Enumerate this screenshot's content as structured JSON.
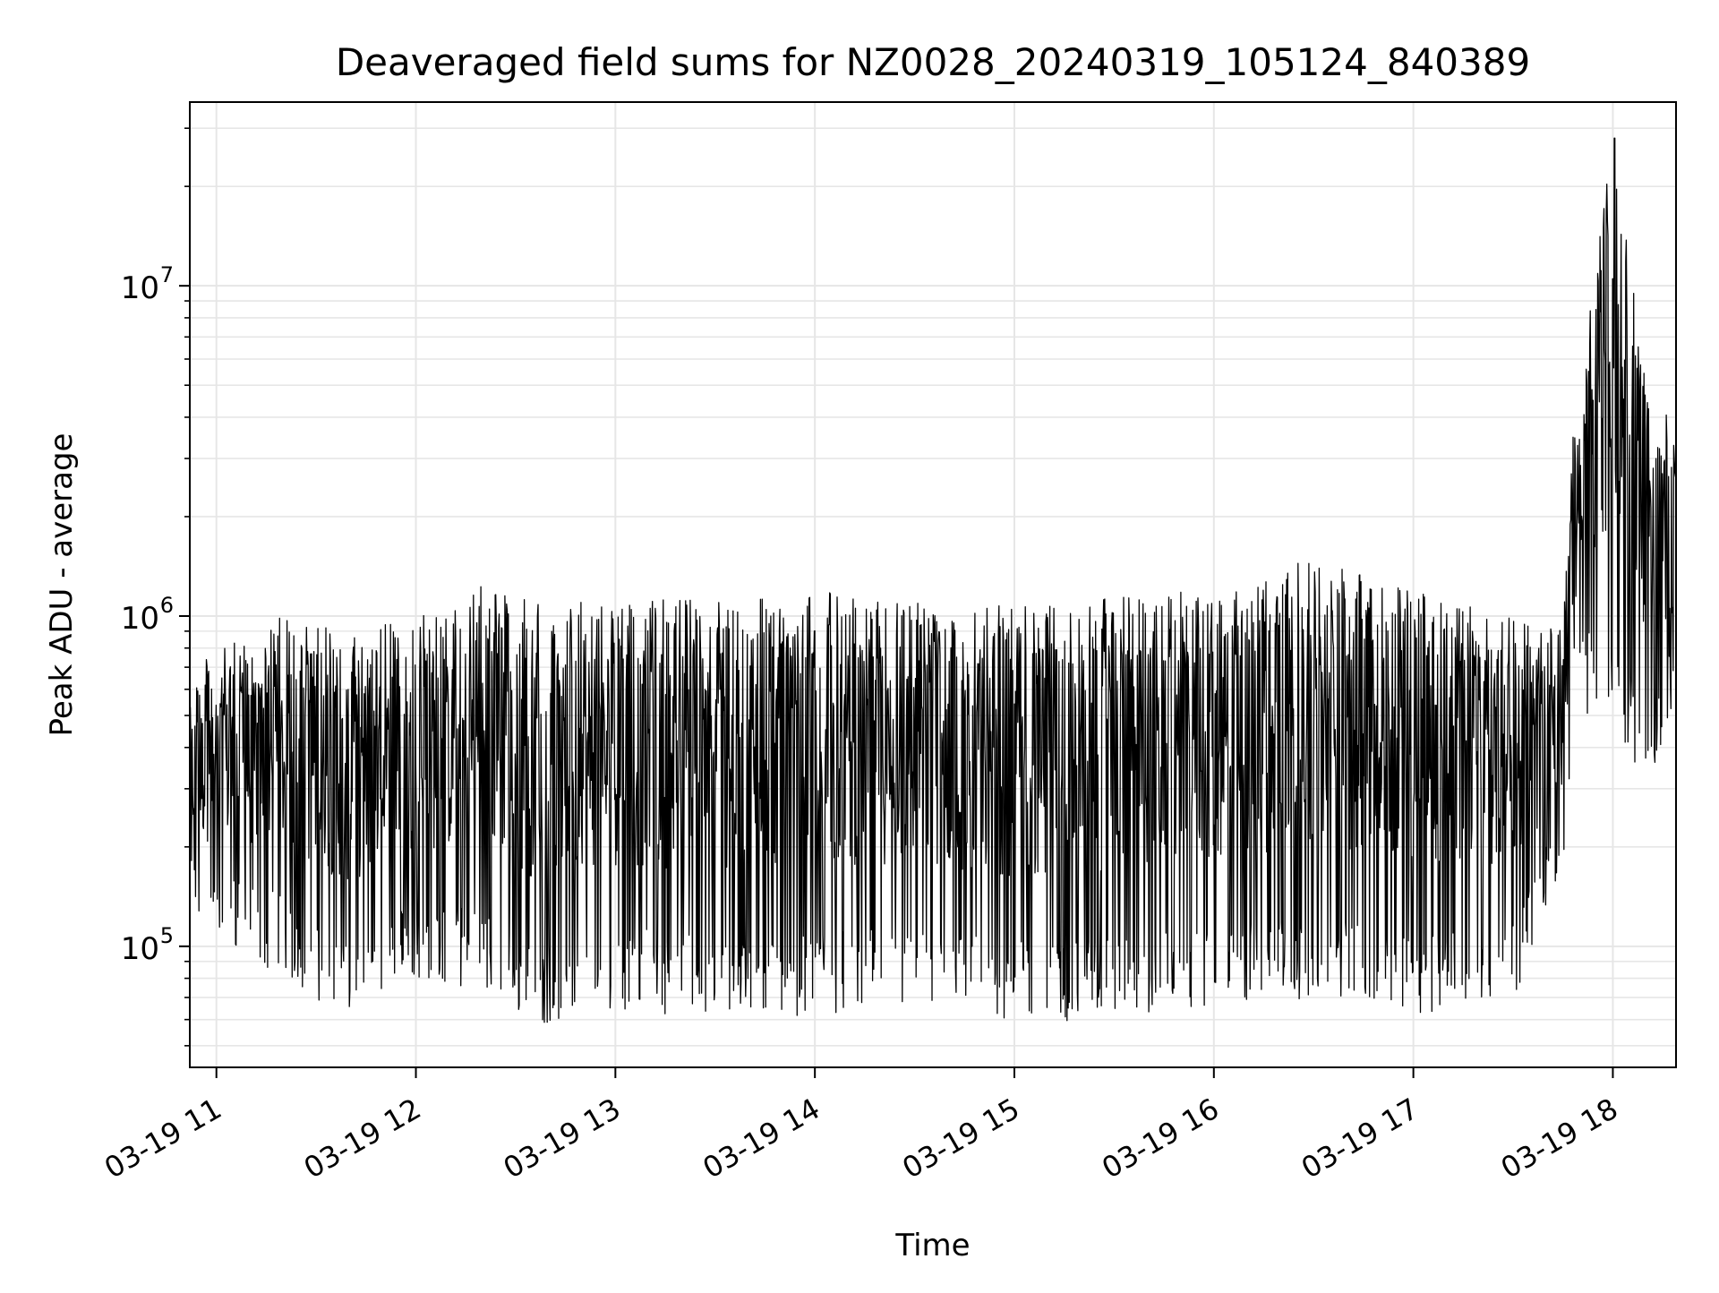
{
  "chart_data": {
    "type": "line",
    "title": "Deaveraged field sums for NZ0028_20240319_105124_840389",
    "xlabel": "Time",
    "ylabel": "Peak ADU - average",
    "x_range": [
      "2024-03-19 10:52",
      "2024-03-19 18:19"
    ],
    "y_scale": "log",
    "ylim": [
      43000,
      36000000
    ],
    "grid": true,
    "line_color": "#000000",
    "x_ticks": [
      {
        "t": "2024-03-19 11:00",
        "label": "03-19 11"
      },
      {
        "t": "2024-03-19 12:00",
        "label": "03-19 12"
      },
      {
        "t": "2024-03-19 13:00",
        "label": "03-19 13"
      },
      {
        "t": "2024-03-19 14:00",
        "label": "03-19 14"
      },
      {
        "t": "2024-03-19 15:00",
        "label": "03-19 15"
      },
      {
        "t": "2024-03-19 16:00",
        "label": "03-19 16"
      },
      {
        "t": "2024-03-19 17:00",
        "label": "03-19 17"
      },
      {
        "t": "2024-03-19 18:00",
        "label": "03-19 18"
      }
    ],
    "y_ticks": [
      {
        "v": 100000,
        "label": "10",
        "exp": "5"
      },
      {
        "v": 1000000,
        "label": "10",
        "exp": "6"
      },
      {
        "v": 10000000,
        "label": "10",
        "exp": "7"
      }
    ],
    "series": [
      {
        "envelope": [
          {
            "t": "2024-03-19 10:52",
            "low": 110000,
            "high": 700000
          },
          {
            "t": "2024-03-19 11:20",
            "low": 80000,
            "high": 1000000
          },
          {
            "t": "2024-03-19 11:40",
            "low": 60000,
            "high": 900000
          },
          {
            "t": "2024-03-19 12:00",
            "low": 80000,
            "high": 1000000
          },
          {
            "t": "2024-03-19 12:25",
            "low": 70000,
            "high": 1300000
          },
          {
            "t": "2024-03-19 12:35",
            "low": 57000,
            "high": 1100000
          },
          {
            "t": "2024-03-19 13:00",
            "low": 65000,
            "high": 1100000
          },
          {
            "t": "2024-03-19 13:30",
            "low": 60000,
            "high": 1150000
          },
          {
            "t": "2024-03-19 14:00",
            "low": 62000,
            "high": 1200000
          },
          {
            "t": "2024-03-19 14:30",
            "low": 65000,
            "high": 1150000
          },
          {
            "t": "2024-03-19 15:00",
            "low": 58000,
            "high": 1100000
          },
          {
            "t": "2024-03-19 15:30",
            "low": 60000,
            "high": 1150000
          },
          {
            "t": "2024-03-19 16:00",
            "low": 65000,
            "high": 1200000
          },
          {
            "t": "2024-03-19 16:30",
            "low": 70000,
            "high": 1500000
          },
          {
            "t": "2024-03-19 17:00",
            "low": 62000,
            "high": 1200000
          },
          {
            "t": "2024-03-19 17:30",
            "low": 70000,
            "high": 1000000
          },
          {
            "t": "2024-03-19 17:45",
            "low": 150000,
            "high": 900000
          },
          {
            "t": "2024-03-19 17:48",
            "low": 500000,
            "high": 3800000
          },
          {
            "t": "2024-03-19 18:00",
            "low": 500000,
            "high": 28000000
          },
          {
            "t": "2024-03-19 18:10",
            "low": 280000,
            "high": 5000000
          },
          {
            "t": "2024-03-19 18:19",
            "low": 500000,
            "high": 4000000
          }
        ]
      }
    ]
  }
}
